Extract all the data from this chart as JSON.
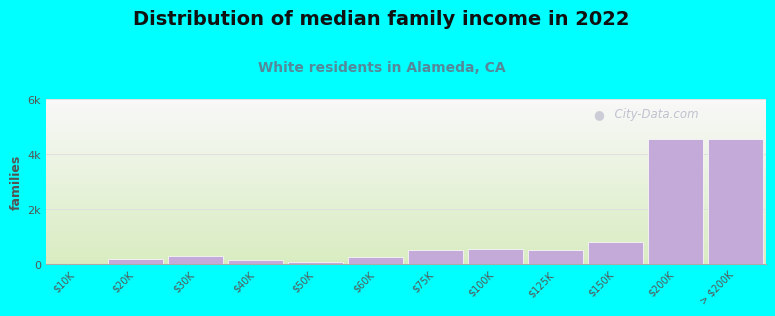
{
  "title": "Distribution of median family income in 2022",
  "subtitle": "White residents in Alameda, CA",
  "title_fontsize": 14,
  "subtitle_fontsize": 10,
  "subtitle_color": "#558899",
  "ylabel": "families",
  "ylabel_fontsize": 9,
  "background_color": "#00FFFF",
  "plot_bg_top": "#f8f8f8",
  "plot_bg_bottom": "#d8ecc0",
  "bar_color": "#c4aad8",
  "bar_edge_color": "#c4aad8",
  "categories": [
    "$10K",
    "$20K",
    "$30K",
    "$40K",
    "$50K",
    "$60K",
    "$75K",
    "$100K",
    "$125K",
    "$150K",
    "$200K",
    "> $200K"
  ],
  "values": [
    20,
    175,
    280,
    160,
    95,
    260,
    500,
    560,
    500,
    800,
    4550,
    4550
  ],
  "ylim": [
    0,
    6000
  ],
  "yticks": [
    0,
    2000,
    4000,
    6000
  ],
  "ytick_labels": [
    "0",
    "2k",
    "4k",
    "6k"
  ],
  "watermark": "  City-Data.com",
  "grid_color": "#dddddd",
  "title_color": "#111111"
}
